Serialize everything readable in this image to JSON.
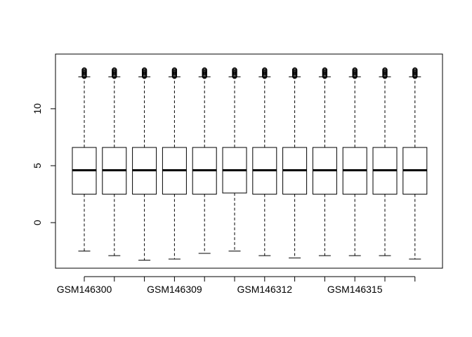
{
  "chart_data": {
    "type": "boxplot",
    "title": "",
    "xlabel": "",
    "ylabel": "",
    "ylim": [
      -4,
      14.8
    ],
    "y_ticks": [
      0,
      5,
      10
    ],
    "x_tick_labels": [
      "GSM146300",
      "GSM146309",
      "GSM146312",
      "GSM146315"
    ],
    "x_tick_label_positions": [
      1,
      4,
      7,
      10
    ],
    "n_boxes": 12,
    "boxes": [
      {
        "whisker_low": -2.5,
        "q1": 2.5,
        "median": 4.6,
        "q3": 6.6,
        "whisker_high": 12.8,
        "outliers_max": 13.4
      },
      {
        "whisker_low": -2.9,
        "q1": 2.5,
        "median": 4.6,
        "q3": 6.6,
        "whisker_high": 12.8,
        "outliers_max": 13.4
      },
      {
        "whisker_low": -3.3,
        "q1": 2.5,
        "median": 4.6,
        "q3": 6.6,
        "whisker_high": 12.8,
        "outliers_max": 13.4
      },
      {
        "whisker_low": -3.2,
        "q1": 2.5,
        "median": 4.6,
        "q3": 6.6,
        "whisker_high": 12.8,
        "outliers_max": 13.4
      },
      {
        "whisker_low": -2.7,
        "q1": 2.5,
        "median": 4.6,
        "q3": 6.6,
        "whisker_high": 12.8,
        "outliers_max": 13.4
      },
      {
        "whisker_low": -2.5,
        "q1": 2.6,
        "median": 4.6,
        "q3": 6.6,
        "whisker_high": 12.8,
        "outliers_max": 13.4
      },
      {
        "whisker_low": -2.9,
        "q1": 2.5,
        "median": 4.6,
        "q3": 6.6,
        "whisker_high": 12.8,
        "outliers_max": 13.4
      },
      {
        "whisker_low": -3.1,
        "q1": 2.5,
        "median": 4.6,
        "q3": 6.6,
        "whisker_high": 12.8,
        "outliers_max": 13.4
      },
      {
        "whisker_low": -2.9,
        "q1": 2.5,
        "median": 4.6,
        "q3": 6.6,
        "whisker_high": 12.8,
        "outliers_max": 13.4
      },
      {
        "whisker_low": -2.9,
        "q1": 2.5,
        "median": 4.6,
        "q3": 6.6,
        "whisker_high": 12.8,
        "outliers_max": 13.4
      },
      {
        "whisker_low": -2.9,
        "q1": 2.5,
        "median": 4.6,
        "q3": 6.6,
        "whisker_high": 12.8,
        "outliers_max": 13.4
      },
      {
        "whisker_low": -3.2,
        "q1": 2.5,
        "median": 4.6,
        "q3": 6.6,
        "whisker_high": 12.8,
        "outliers_max": 13.4
      }
    ],
    "grid": false,
    "legend": "none"
  }
}
